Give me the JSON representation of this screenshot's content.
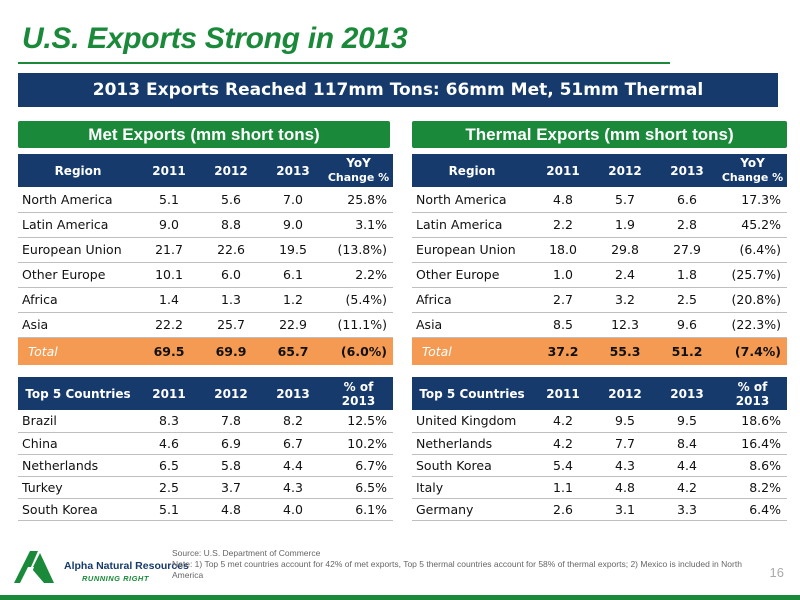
{
  "title": "U.S. Exports Strong in 2013",
  "banner": "2013 Exports Reached 117mm Tons: 66mm Met, 51mm Thermal",
  "met": {
    "heading": "Met Exports (mm short tons)",
    "region_header": {
      "c0": "Region",
      "c1": "2011",
      "c2": "2012",
      "c3": "2013",
      "c4a": "YoY",
      "c4b": "Change %"
    },
    "regions": [
      {
        "name": "North America",
        "y2011": "5.1",
        "y2012": "5.6",
        "y2013": "7.0",
        "yoy": "25.8%"
      },
      {
        "name": "Latin America",
        "y2011": "9.0",
        "y2012": "8.8",
        "y2013": "9.0",
        "yoy": "3.1%"
      },
      {
        "name": "European Union",
        "y2011": "21.7",
        "y2012": "22.6",
        "y2013": "19.5",
        "yoy": "(13.8%)"
      },
      {
        "name": "Other Europe",
        "y2011": "10.1",
        "y2012": "6.0",
        "y2013": "6.1",
        "yoy": "2.2%"
      },
      {
        "name": "Africa",
        "y2011": "1.4",
        "y2012": "1.3",
        "y2013": "1.2",
        "yoy": "(5.4%)"
      },
      {
        "name": "Asia",
        "y2011": "22.2",
        "y2012": "25.7",
        "y2013": "22.9",
        "yoy": "(11.1%)"
      }
    ],
    "total": {
      "name": "Total",
      "y2011": "69.5",
      "y2012": "69.9",
      "y2013": "65.7",
      "yoy": "(6.0%)"
    },
    "countries_header": {
      "c0": "Top 5 Countries",
      "c1": "2011",
      "c2": "2012",
      "c3": "2013",
      "c4a": "% of",
      "c4b": "2013"
    },
    "countries": [
      {
        "name": "Brazil",
        "y2011": "8.3",
        "y2012": "7.8",
        "y2013": "8.2",
        "pct": "12.5%"
      },
      {
        "name": "China",
        "y2011": "4.6",
        "y2012": "6.9",
        "y2013": "6.7",
        "pct": "10.2%"
      },
      {
        "name": "Netherlands",
        "y2011": "6.5",
        "y2012": "5.8",
        "y2013": "4.4",
        "pct": "6.7%"
      },
      {
        "name": "Turkey",
        "y2011": "2.5",
        "y2012": "3.7",
        "y2013": "4.3",
        "pct": "6.5%"
      },
      {
        "name": "South Korea",
        "y2011": "5.1",
        "y2012": "4.8",
        "y2013": "4.0",
        "pct": "6.1%"
      }
    ]
  },
  "thermal": {
    "heading": "Thermal Exports (mm short tons)",
    "region_header": {
      "c0": "Region",
      "c1": "2011",
      "c2": "2012",
      "c3": "2013",
      "c4a": "YoY",
      "c4b": "Change %"
    },
    "regions": [
      {
        "name": "North America",
        "y2011": "4.8",
        "y2012": "5.7",
        "y2013": "6.6",
        "yoy": "17.3%"
      },
      {
        "name": "Latin America",
        "y2011": "2.2",
        "y2012": "1.9",
        "y2013": "2.8",
        "yoy": "45.2%"
      },
      {
        "name": "European Union",
        "y2011": "18.0",
        "y2012": "29.8",
        "y2013": "27.9",
        "yoy": "(6.4%)"
      },
      {
        "name": "Other Europe",
        "y2011": "1.0",
        "y2012": "2.4",
        "y2013": "1.8",
        "yoy": "(25.7%)"
      },
      {
        "name": "Africa",
        "y2011": "2.7",
        "y2012": "3.2",
        "y2013": "2.5",
        "yoy": "(20.8%)"
      },
      {
        "name": "Asia",
        "y2011": "8.5",
        "y2012": "12.3",
        "y2013": "9.6",
        "yoy": "(22.3%)"
      }
    ],
    "total": {
      "name": "Total",
      "y2011": "37.2",
      "y2012": "55.3",
      "y2013": "51.2",
      "yoy": "(7.4%)"
    },
    "countries_header": {
      "c0": "Top 5 Countries",
      "c1": "2011",
      "c2": "2012",
      "c3": "2013",
      "c4a": "% of",
      "c4b": "2013"
    },
    "countries": [
      {
        "name": "United Kingdom",
        "y2011": "4.2",
        "y2012": "9.5",
        "y2013": "9.5",
        "pct": "18.6%"
      },
      {
        "name": "Netherlands",
        "y2011": "4.2",
        "y2012": "7.7",
        "y2013": "8.4",
        "pct": "16.4%"
      },
      {
        "name": "South Korea",
        "y2011": "5.4",
        "y2012": "4.3",
        "y2013": "4.4",
        "pct": "8.6%"
      },
      {
        "name": "Italy",
        "y2011": "1.1",
        "y2012": "4.8",
        "y2013": "4.2",
        "pct": "8.2%"
      },
      {
        "name": "Germany",
        "y2011": "2.6",
        "y2012": "3.1",
        "y2013": "3.3",
        "pct": "6.4%"
      }
    ]
  },
  "footer": {
    "logo_name": "Alpha Natural Resources",
    "logo_tagline": "RUNNING RIGHT",
    "source": "Source: U.S. Department of Commerce",
    "note": "Note: 1) Top 5 met countries account for 42% of met exports, Top 5 thermal countries account for 58% of thermal exports; 2) Mexico is included in North America",
    "page": "16"
  },
  "colors": {
    "green": "#1a8a3a",
    "navy": "#153a6b",
    "total_orange": "#f59a52"
  }
}
